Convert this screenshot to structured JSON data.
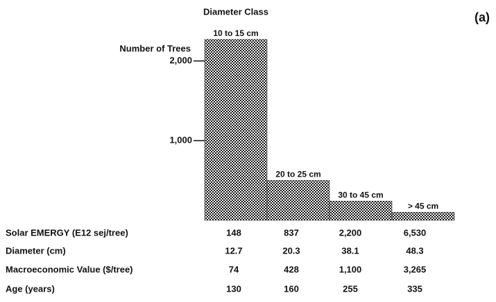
{
  "chart_data": {
    "type": "bar",
    "title": "Diameter Class",
    "annotation": "(a)",
    "y_label": "Number of Trees",
    "categories": [
      "10 to 15 cm",
      "20 to 25 cm",
      "30 to 45 cm",
      "> 45 cm"
    ],
    "values": [
      2270,
      500,
      240,
      100
    ],
    "color": "#111111",
    "ylim": [
      0,
      2300
    ],
    "yticks": [
      {
        "value": 1000,
        "label": "1,000"
      },
      {
        "value": 2000,
        "label": "2,000"
      }
    ]
  },
  "table": {
    "rows": [
      {
        "label": "Solar EMERGY (E12 sej/tree)",
        "values": [
          "148",
          "837",
          "2,200",
          "6,530"
        ]
      },
      {
        "label": "Diameter (cm)",
        "values": [
          "12.7",
          "20.3",
          "38.1",
          "48.3"
        ]
      },
      {
        "label": "Macroeconomic Value ($/tree)",
        "values": [
          "74",
          "428",
          "1,100",
          "3,265"
        ]
      },
      {
        "label": "Age (years)",
        "values": [
          "130",
          "160",
          "255",
          "335"
        ]
      }
    ]
  }
}
